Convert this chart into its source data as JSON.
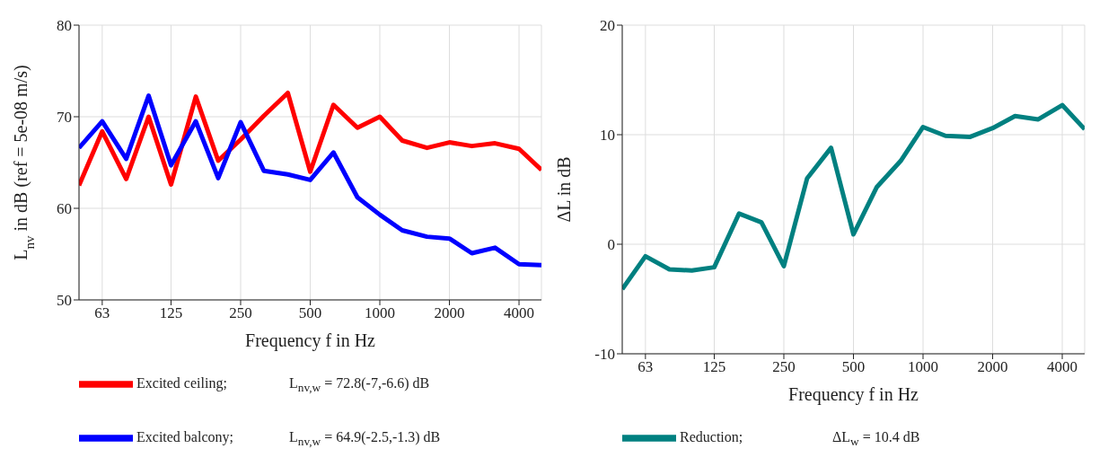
{
  "chart_data": [
    {
      "type": "line",
      "xlabel": "Frequency f in Hz",
      "ylabel": "L$_{nv}$ in dB (ref = 5e-08 m/s)",
      "log": "x",
      "grid": true,
      "legend": "bottom",
      "x": [
        50,
        63,
        80,
        100,
        125,
        160,
        200,
        250,
        315,
        400,
        500,
        630,
        800,
        1000,
        1250,
        1600,
        2000,
        2500,
        3150,
        4000,
        5000
      ],
      "xlim": [
        50,
        5000
      ],
      "xticks": [
        63,
        125,
        250,
        500,
        1000,
        2000,
        4000
      ],
      "ylim": [
        50,
        80
      ],
      "yticks": [
        50,
        60,
        70,
        80
      ],
      "series": [
        {
          "name": "Excited ceiling;",
          "color": "#ff0000",
          "values": [
            62.5,
            68.4,
            63.2,
            70,
            62.6,
            72.2,
            65.2,
            67.5,
            70.1,
            72.6,
            64,
            71.3,
            68.8,
            70,
            67.4,
            66.6,
            67.2,
            66.8,
            67.1,
            66.5,
            64.2
          ]
        },
        {
          "name": "Excited balcony;",
          "color": "#0000ff",
          "values": [
            66.6,
            69.5,
            65.4,
            72.3,
            64.7,
            69.5,
            63.3,
            69.4,
            64.1,
            63.7,
            63.1,
            66.1,
            61.2,
            59.3,
            57.6,
            56.9,
            56.7,
            55.1,
            55.7,
            53.9,
            53.8
          ]
        }
      ],
      "annotations": [
        "L$_{nv,w}$ = 72.8(-7,-6.6) dB",
        "L$_{nv,w}$ = 64.9(-2.5,-1.3) dB"
      ]
    },
    {
      "type": "line",
      "xlabel": "Frequency f in Hz",
      "ylabel": "ΔL in dB",
      "log": "x",
      "grid": true,
      "legend": "bottom",
      "x": [
        50,
        63,
        80,
        100,
        125,
        160,
        200,
        250,
        315,
        400,
        500,
        630,
        800,
        1000,
        1250,
        1600,
        2000,
        2500,
        3150,
        4000,
        5000
      ],
      "xlim": [
        50,
        5000
      ],
      "xticks": [
        63,
        125,
        250,
        500,
        1000,
        2000,
        4000
      ],
      "ylim": [
        -10,
        20
      ],
      "yticks": [
        -10,
        0,
        10,
        20
      ],
      "series": [
        {
          "name": "Reduction;",
          "color": "#008080",
          "values": [
            -4.1,
            -1.1,
            -2.3,
            -2.4,
            -2.1,
            2.8,
            2.0,
            -2.0,
            6.0,
            8.8,
            0.9,
            5.2,
            7.6,
            10.7,
            9.9,
            9.8,
            10.6,
            11.7,
            11.4,
            12.7,
            10.5
          ]
        }
      ],
      "annotations": [
        "ΔL$_{w}$ = 10.4 dB"
      ]
    }
  ]
}
